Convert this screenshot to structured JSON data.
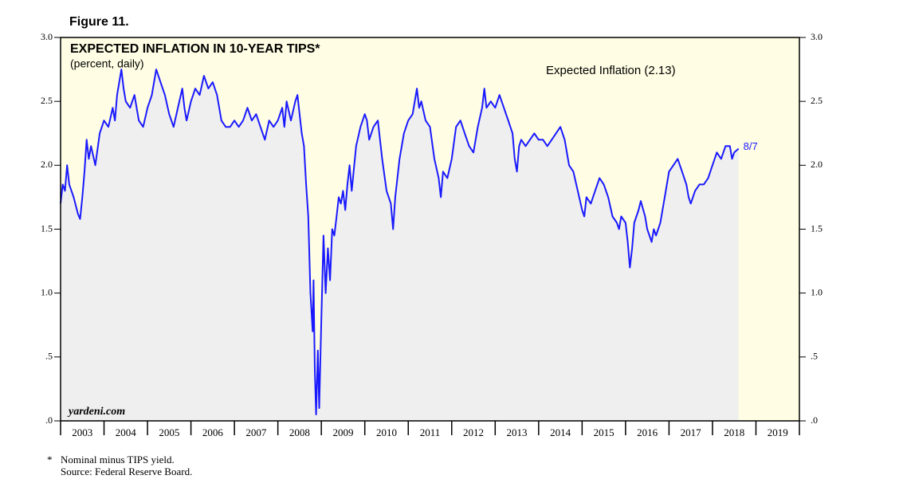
{
  "chart_data": {
    "type": "line",
    "figure_label": "Figure 11.",
    "title": "EXPECTED INFLATION IN 10-YEAR TIPS*",
    "subtitle": "(percent, daily)",
    "annotation": "8/7",
    "watermark": "yardeni.com",
    "footnotes": [
      "*",
      "Nominal minus TIPS yield.",
      "Source: Federal Reserve Board."
    ],
    "plot_background": "#fffde3",
    "area_color": "#efefef",
    "xlim": [
      2003,
      2020
    ],
    "xticks": [
      2003,
      2004,
      2005,
      2006,
      2007,
      2008,
      2009,
      2010,
      2011,
      2012,
      2013,
      2014,
      2015,
      2016,
      2017,
      2018,
      2019
    ],
    "ylim": [
      0,
      3
    ],
    "yticks": [
      {
        "value": 0,
        "label": ".0"
      },
      {
        "value": 0.5,
        "label": ".5"
      },
      {
        "value": 1,
        "label": "1.0"
      },
      1.5,
      {
        "value": 2,
        "label": "2.0"
      },
      2.5,
      {
        "value": 3,
        "label": "3.0"
      }
    ],
    "x": [
      2003.0,
      2003.05,
      2003.1,
      2003.15,
      2003.2,
      2003.3,
      2003.4,
      2003.45,
      2003.5,
      2003.55,
      2003.6,
      2003.65,
      2003.7,
      2003.8,
      2003.9,
      2004.0,
      2004.1,
      2004.2,
      2004.25,
      2004.3,
      2004.4,
      2004.45,
      2004.5,
      2004.6,
      2004.7,
      2004.8,
      2004.9,
      2005.0,
      2005.1,
      2005.2,
      2005.3,
      2005.4,
      2005.5,
      2005.6,
      2005.7,
      2005.8,
      2005.85,
      2005.9,
      2006.0,
      2006.1,
      2006.2,
      2006.3,
      2006.4,
      2006.5,
      2006.6,
      2006.7,
      2006.8,
      2006.9,
      2007.0,
      2007.1,
      2007.2,
      2007.3,
      2007.4,
      2007.5,
      2007.6,
      2007.7,
      2007.8,
      2007.9,
      2008.0,
      2008.1,
      2008.15,
      2008.2,
      2008.3,
      2008.4,
      2008.45,
      2008.5,
      2008.55,
      2008.6,
      2008.65,
      2008.7,
      2008.75,
      2008.8,
      2008.82,
      2008.85,
      2008.88,
      2008.92,
      2008.95,
      2009.0,
      2009.05,
      2009.1,
      2009.15,
      2009.2,
      2009.25,
      2009.3,
      2009.35,
      2009.4,
      2009.45,
      2009.5,
      2009.55,
      2009.6,
      2009.65,
      2009.7,
      2009.8,
      2009.9,
      2010.0,
      2010.05,
      2010.1,
      2010.2,
      2010.3,
      2010.4,
      2010.5,
      2010.6,
      2010.65,
      2010.7,
      2010.8,
      2010.9,
      2011.0,
      2011.1,
      2011.2,
      2011.25,
      2011.3,
      2011.4,
      2011.5,
      2011.6,
      2011.7,
      2011.75,
      2011.8,
      2011.9,
      2012.0,
      2012.1,
      2012.2,
      2012.3,
      2012.4,
      2012.5,
      2012.6,
      2012.7,
      2012.75,
      2012.8,
      2012.9,
      2013.0,
      2013.1,
      2013.2,
      2013.3,
      2013.4,
      2013.45,
      2013.5,
      2013.55,
      2013.6,
      2013.7,
      2013.8,
      2013.9,
      2014.0,
      2014.1,
      2014.2,
      2014.3,
      2014.4,
      2014.5,
      2014.55,
      2014.6,
      2014.7,
      2014.8,
      2014.9,
      2015.0,
      2015.05,
      2015.1,
      2015.2,
      2015.3,
      2015.4,
      2015.5,
      2015.6,
      2015.7,
      2015.8,
      2015.85,
      2015.9,
      2016.0,
      2016.05,
      2016.1,
      2016.15,
      2016.2,
      2016.3,
      2016.35,
      2016.45,
      2016.5,
      2016.6,
      2016.65,
      2016.7,
      2016.8,
      2016.9,
      2017.0,
      2017.1,
      2017.2,
      2017.3,
      2017.4,
      2017.45,
      2017.5,
      2017.6,
      2017.7,
      2017.8,
      2017.9,
      2018.0,
      2018.1,
      2018.2,
      2018.3,
      2018.4,
      2018.45,
      2018.5,
      2018.6
    ],
    "series": [
      {
        "name": "Expected Inflation (2.13)",
        "color": "#1a1aff",
        "values": [
          1.7,
          1.85,
          1.8,
          2.0,
          1.85,
          1.75,
          1.62,
          1.58,
          1.75,
          1.95,
          2.2,
          2.05,
          2.15,
          2.0,
          2.25,
          2.35,
          2.3,
          2.45,
          2.35,
          2.55,
          2.75,
          2.6,
          2.5,
          2.45,
          2.55,
          2.35,
          2.3,
          2.45,
          2.55,
          2.75,
          2.65,
          2.55,
          2.4,
          2.3,
          2.45,
          2.6,
          2.45,
          2.35,
          2.5,
          2.6,
          2.55,
          2.7,
          2.6,
          2.65,
          2.55,
          2.35,
          2.3,
          2.3,
          2.35,
          2.3,
          2.35,
          2.45,
          2.35,
          2.4,
          2.3,
          2.2,
          2.35,
          2.3,
          2.35,
          2.45,
          2.3,
          2.5,
          2.35,
          2.5,
          2.55,
          2.4,
          2.25,
          2.15,
          1.85,
          1.6,
          1.0,
          0.7,
          1.1,
          0.4,
          0.05,
          0.55,
          0.1,
          0.8,
          1.45,
          1.0,
          1.35,
          1.1,
          1.5,
          1.45,
          1.6,
          1.75,
          1.7,
          1.8,
          1.65,
          1.85,
          2.0,
          1.8,
          2.15,
          2.3,
          2.4,
          2.35,
          2.2,
          2.3,
          2.35,
          2.05,
          1.8,
          1.7,
          1.5,
          1.75,
          2.05,
          2.25,
          2.35,
          2.4,
          2.6,
          2.45,
          2.5,
          2.35,
          2.3,
          2.05,
          1.9,
          1.75,
          1.95,
          1.9,
          2.05,
          2.3,
          2.35,
          2.25,
          2.15,
          2.1,
          2.3,
          2.45,
          2.6,
          2.45,
          2.5,
          2.45,
          2.55,
          2.45,
          2.35,
          2.25,
          2.05,
          1.95,
          2.15,
          2.2,
          2.15,
          2.2,
          2.25,
          2.2,
          2.2,
          2.15,
          2.2,
          2.25,
          2.3,
          2.25,
          2.2,
          2.0,
          1.95,
          1.8,
          1.65,
          1.6,
          1.75,
          1.7,
          1.8,
          1.9,
          1.85,
          1.75,
          1.6,
          1.55,
          1.5,
          1.6,
          1.55,
          1.4,
          1.2,
          1.35,
          1.55,
          1.65,
          1.72,
          1.6,
          1.5,
          1.4,
          1.5,
          1.45,
          1.55,
          1.75,
          1.95,
          2.0,
          2.05,
          1.95,
          1.85,
          1.75,
          1.7,
          1.8,
          1.85,
          1.85,
          1.9,
          2.0,
          2.1,
          2.05,
          2.15,
          2.15,
          2.05,
          2.1,
          2.13
        ]
      }
    ]
  }
}
